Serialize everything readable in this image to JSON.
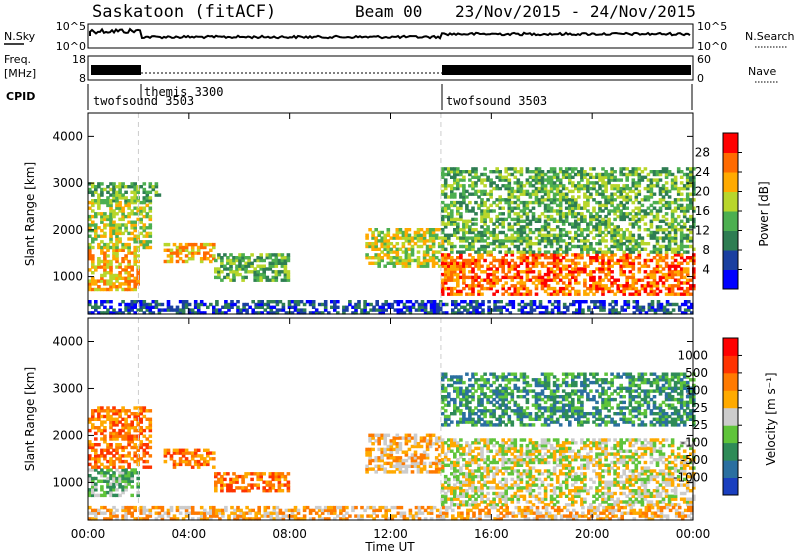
{
  "header": {
    "station": "Saskatoon (fitACF)",
    "beam": "Beam 00",
    "date_range": "23/Nov/2015 - 24/Nov/2015"
  },
  "top_panels": {
    "nsky": {
      "label": "N.Sky",
      "tick_top": "10^5",
      "tick_bottom": "10^0",
      "right_label": "N.Search",
      "right_tick_top": "10^5",
      "right_tick_bottom": "10^0"
    },
    "freq": {
      "label_line1": "Freq.",
      "label_line2": "[MHz]",
      "tick_top": "18",
      "tick_bottom": "8",
      "right_label": "Nave",
      "right_tick_top": "60",
      "right_tick_bottom": "0"
    },
    "cpid": {
      "label": "CPID",
      "segments": [
        {
          "name": "twofsound 3503",
          "start_hour": 0,
          "end_hour": 2
        },
        {
          "name": "themis 3300",
          "start_hour": 2,
          "end_hour": 14
        },
        {
          "name": "twofsound 3503",
          "start_hour": 14,
          "end_hour": 24
        }
      ]
    }
  },
  "chart_data": [
    {
      "type": "heatmap",
      "name": "power",
      "ylabel": "Slant Range [km]",
      "xlabel": "",
      "x_unit": "hours UT",
      "xlim": [
        0,
        24
      ],
      "ylim": [
        200,
        4500
      ],
      "yticks": [
        "1000",
        "2000",
        "3000",
        "4000"
      ],
      "colorbar": {
        "label": "Power [dB]",
        "ticks": [
          "4",
          "8",
          "12",
          "16",
          "20",
          "24",
          "28"
        ],
        "colors": [
          "#0000ff",
          "#1a3fa0",
          "#2e7d52",
          "#4caf50",
          "#b8d62b",
          "#ffaa00",
          "#ff6a00",
          "#ff0000"
        ]
      },
      "regions": [
        {
          "x0": 0.0,
          "x1": 2.0,
          "y0": 700,
          "y1": 1600,
          "level": 5
        },
        {
          "x0": 0.0,
          "x1": 2.5,
          "y0": 1600,
          "y1": 2600,
          "level": 4
        },
        {
          "x0": 0.0,
          "x1": 2.8,
          "y0": 2600,
          "y1": 3000,
          "level": 3
        },
        {
          "x0": 3.0,
          "x1": 5.0,
          "y0": 1300,
          "y1": 1700,
          "level": 5
        },
        {
          "x0": 5.0,
          "x1": 8.0,
          "y0": 900,
          "y1": 1500,
          "level": 3
        },
        {
          "x0": 11.0,
          "x1": 14.0,
          "y0": 1200,
          "y1": 2000,
          "level": 4
        },
        {
          "x0": 14.0,
          "x1": 24.0,
          "y0": 600,
          "y1": 1500,
          "level": 6
        },
        {
          "x0": 14.0,
          "x1": 24.0,
          "y0": 1500,
          "y1": 2200,
          "level": 3
        },
        {
          "x0": 14.0,
          "x1": 24.0,
          "y0": 2200,
          "y1": 3300,
          "level": 3
        },
        {
          "x0": 0.0,
          "x1": 24.0,
          "y0": 200,
          "y1": 500,
          "level": 1
        }
      ]
    },
    {
      "type": "heatmap",
      "name": "velocity",
      "ylabel": "Slant Range [km]",
      "xlabel": "Time UT",
      "x_unit": "hours UT",
      "xlim": [
        0,
        24
      ],
      "ylim": [
        200,
        4500
      ],
      "yticks": [
        "1000",
        "2000",
        "3000",
        "4000"
      ],
      "xticks": [
        "00:00",
        "04:00",
        "08:00",
        "12:00",
        "16:00",
        "20:00",
        "00:00"
      ],
      "colorbar": {
        "label": "Velocity [m s⁻¹]",
        "ticks": [
          "1000",
          "500",
          "100",
          "25",
          "-25",
          "-100",
          "-500",
          "-1000"
        ],
        "colors": [
          "#1a3fbf",
          "#2a6fa0",
          "#2e8b57",
          "#5fc43a",
          "#cccccc",
          "#ffaa00",
          "#ff7a00",
          "#ff3300",
          "#ff0000"
        ]
      },
      "regions": [
        {
          "x0": 0.0,
          "x1": 2.0,
          "y0": 700,
          "y1": 1300,
          "level": 3
        },
        {
          "x0": 0.0,
          "x1": 2.5,
          "y0": 1300,
          "y1": 2600,
          "level": 6
        },
        {
          "x0": 3.0,
          "x1": 5.0,
          "y0": 1300,
          "y1": 1700,
          "level": 6
        },
        {
          "x0": 5.0,
          "x1": 8.0,
          "y0": 800,
          "y1": 1200,
          "level": 6
        },
        {
          "x0": 11.0,
          "x1": 14.0,
          "y0": 1200,
          "y1": 2000,
          "level": 5
        },
        {
          "x0": 14.0,
          "x1": 24.0,
          "y0": 500,
          "y1": 1900,
          "level": 4
        },
        {
          "x0": 14.0,
          "x1": 24.0,
          "y0": 2200,
          "y1": 3300,
          "level": 2
        },
        {
          "x0": 0.0,
          "x1": 24.0,
          "y0": 200,
          "y1": 500,
          "level": 5
        }
      ]
    }
  ]
}
